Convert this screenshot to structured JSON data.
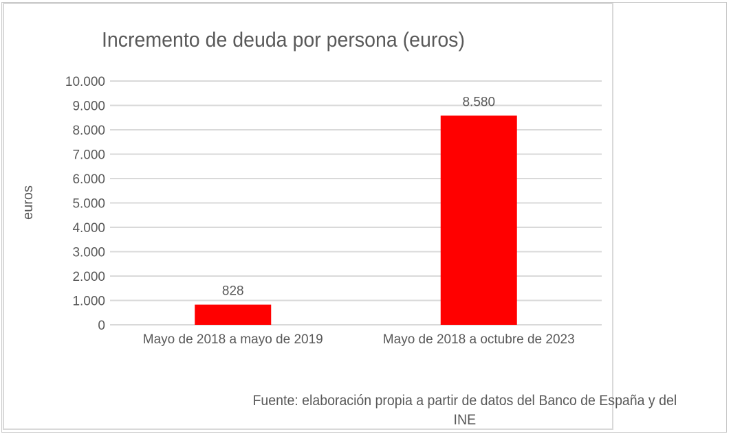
{
  "chart_data": {
    "type": "bar",
    "title": "Incremento de deuda por persona (euros)",
    "xlabel": "",
    "ylabel": "euros",
    "categories": [
      "Mayo de 2018 a mayo de 2019",
      "Mayo de 2018 a octubre de 2023"
    ],
    "values": [
      828,
      8580
    ],
    "data_labels": [
      "828",
      "8.580"
    ],
    "ylim": [
      0,
      10000
    ],
    "yticks": [
      0,
      1000,
      2000,
      3000,
      4000,
      5000,
      6000,
      7000,
      8000,
      9000,
      10000
    ],
    "ytick_labels": [
      "0",
      "1.000",
      "2.000",
      "3.000",
      "4.000",
      "5.000",
      "6.000",
      "7.000",
      "8.000",
      "9.000",
      "10.000"
    ],
    "grid": true,
    "bar_color": "#ff0000",
    "source": "Fuente: elaboración propia a partir de datos del Banco de España y del INE"
  }
}
